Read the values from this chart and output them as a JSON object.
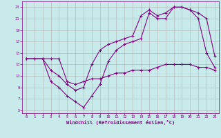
{
  "background_color": "#c8eaea",
  "grid_color": "#b0b0b0",
  "line_color": "#800080",
  "xlabel": "Windchill (Refroidissement éolien,°C)",
  "xlabel_color": "#800080",
  "tick_color": "#800080",
  "xlim": [
    -0.5,
    23.5
  ],
  "ylim": [
    4.5,
    24.0
  ],
  "yticks": [
    5,
    7,
    9,
    11,
    13,
    15,
    17,
    19,
    21,
    23
  ],
  "xticks": [
    0,
    1,
    2,
    3,
    4,
    5,
    6,
    7,
    8,
    9,
    10,
    11,
    12,
    13,
    14,
    15,
    16,
    17,
    18,
    19,
    20,
    21,
    22,
    23
  ],
  "line1_x": [
    0,
    1,
    2,
    3,
    4,
    5,
    6,
    7,
    8,
    9,
    10,
    11,
    12,
    13,
    14,
    15,
    16,
    17,
    18,
    19,
    20,
    21,
    22,
    23
  ],
  "line1_y": [
    14,
    14,
    14,
    14,
    14,
    10,
    9.5,
    10,
    10.5,
    10.5,
    11,
    11.5,
    11.5,
    12,
    12,
    12,
    12.5,
    13,
    13,
    13,
    13,
    12.5,
    12.5,
    12
  ],
  "line2_x": [
    0,
    1,
    2,
    3,
    4,
    5,
    6,
    7,
    8,
    9,
    10,
    11,
    12,
    13,
    14,
    15,
    16,
    17,
    18,
    19,
    20,
    21,
    22,
    23
  ],
  "line2_y": [
    14,
    14,
    14,
    12,
    11,
    9.5,
    8.5,
    9,
    13,
    15.5,
    16.5,
    17,
    17.5,
    18,
    21.5,
    22.5,
    21.5,
    22,
    23,
    23,
    22.5,
    22,
    21,
    14.5
  ],
  "line3_x": [
    2,
    3,
    4,
    5,
    6,
    7,
    8,
    9,
    10,
    11,
    12,
    13,
    14,
    15,
    16,
    17,
    18,
    19,
    20,
    21,
    22,
    23
  ],
  "line3_y": [
    14,
    10,
    9,
    7.5,
    6.5,
    5.5,
    7.5,
    9.5,
    13.5,
    15.5,
    16.5,
    17,
    17.5,
    22,
    21,
    21,
    23,
    23,
    22.5,
    21,
    15,
    12.5
  ]
}
